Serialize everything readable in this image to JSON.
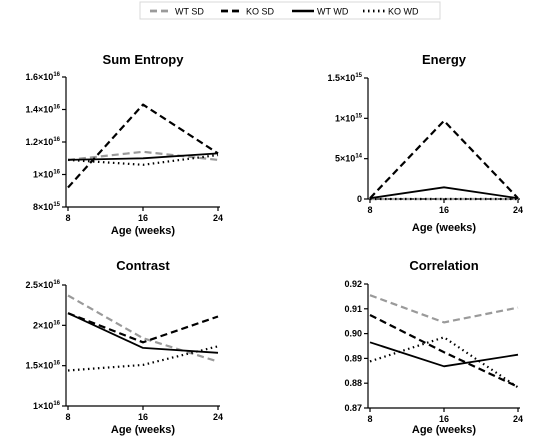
{
  "legend": [
    {
      "key": "wt_sd",
      "label": "WT SD"
    },
    {
      "key": "ko_sd",
      "label": "KO SD"
    },
    {
      "key": "wt_wd",
      "label": "WT WD"
    },
    {
      "key": "ko_wd",
      "label": "KO WD"
    }
  ],
  "series_styles": {
    "wt_sd": {
      "color": "#9a9a9a",
      "dash": "7,4",
      "width": 2.2
    },
    "ko_sd": {
      "color": "#000000",
      "dash": "7,4",
      "width": 2.2
    },
    "wt_wd": {
      "color": "#000000",
      "dash": "",
      "width": 1.8
    },
    "ko_wd": {
      "color": "#000000",
      "dash": "1.5,3.5",
      "width": 2.2
    }
  },
  "chart_data": [
    {
      "type": "line",
      "title": "Sum Entropy",
      "xlabel": "Age (weeks)",
      "ylabel": "",
      "categories": [
        "8",
        "16",
        "24"
      ],
      "ylim": [
        8000000000000000.0,
        1.6e+16
      ],
      "yticks": [
        {
          "v": 8000000000000000.0,
          "label": "8×10",
          "exp": "15"
        },
        {
          "v": 1e+16,
          "label": "1×10",
          "exp": "16"
        },
        {
          "v": 1.2e+16,
          "label": "1.2×10",
          "exp": "16"
        },
        {
          "v": 1.4e+16,
          "label": "1.4×10",
          "exp": "16"
        },
        {
          "v": 1.6e+16,
          "label": "1.6×10",
          "exp": "16"
        }
      ],
      "series": [
        {
          "key": "wt_sd",
          "name": "WT SD",
          "values": [
            1.09e+16,
            1.14e+16,
            1.09e+16
          ]
        },
        {
          "key": "ko_sd",
          "name": "KO SD",
          "values": [
            9200000000000000.0,
            1.43e+16,
            1.13e+16
          ]
        },
        {
          "key": "wt_wd",
          "name": "WT WD",
          "values": [
            1.09e+16,
            1.1e+16,
            1.13e+16
          ]
        },
        {
          "key": "ko_wd",
          "name": "KO WD",
          "values": [
            1.09e+16,
            1.06e+16,
            1.12e+16
          ]
        }
      ]
    },
    {
      "type": "line",
      "title": "Energy",
      "xlabel": "Age (weeks)",
      "ylabel": "",
      "categories": [
        "8",
        "16",
        "24"
      ],
      "ylim": [
        0,
        1500000000000000.0
      ],
      "yticks": [
        {
          "v": 0,
          "label": "0",
          "exp": ""
        },
        {
          "v": 500000000000000.0,
          "label": "5×10",
          "exp": "14"
        },
        {
          "v": 1000000000000000.0,
          "label": "1×10",
          "exp": "15"
        },
        {
          "v": 1500000000000000.0,
          "label": "1.5×10",
          "exp": "15"
        }
      ],
      "series": [
        {
          "key": "wt_sd",
          "name": "WT SD",
          "values": [
            0,
            0,
            0
          ]
        },
        {
          "key": "ko_sd",
          "name": "KO SD",
          "values": [
            10000000000000.0,
            970000000000000.0,
            10000000000000.0
          ]
        },
        {
          "key": "wt_wd",
          "name": "WT WD",
          "values": [
            10000000000000.0,
            145000000000000.0,
            10000000000000.0
          ]
        },
        {
          "key": "ko_wd",
          "name": "KO WD",
          "values": [
            0,
            0,
            0
          ]
        }
      ]
    },
    {
      "type": "line",
      "title": "Contrast",
      "xlabel": "Age (weeks)",
      "ylabel": "",
      "categories": [
        "8",
        "16",
        "24"
      ],
      "ylim": [
        1e+16,
        2.5e+16
      ],
      "yticks": [
        {
          "v": 1e+16,
          "label": "1×10",
          "exp": "16"
        },
        {
          "v": 1.5e+16,
          "label": "1.5×10",
          "exp": "16"
        },
        {
          "v": 2e+16,
          "label": "2×10",
          "exp": "16"
        },
        {
          "v": 2.5e+16,
          "label": "2.5×10",
          "exp": "16"
        }
      ],
      "series": [
        {
          "key": "wt_sd",
          "name": "WT SD",
          "values": [
            2.37e+16,
            1.84e+16,
            1.55e+16
          ]
        },
        {
          "key": "ko_sd",
          "name": "KO SD",
          "values": [
            2.15e+16,
            1.79e+16,
            2.11e+16
          ]
        },
        {
          "key": "wt_wd",
          "name": "WT WD",
          "values": [
            2.15e+16,
            1.72e+16,
            1.66e+16
          ]
        },
        {
          "key": "ko_wd",
          "name": "KO WD",
          "values": [
            1.44e+16,
            1.51e+16,
            1.74e+16
          ]
        }
      ]
    },
    {
      "type": "line",
      "title": "Correlation",
      "xlabel": "Age (weeks)",
      "ylabel": "",
      "categories": [
        "8",
        "16",
        "24"
      ],
      "ylim": [
        0.87,
        0.92
      ],
      "yticks": [
        {
          "v": 0.87,
          "label": "0.87",
          "exp": ""
        },
        {
          "v": 0.88,
          "label": "0.88",
          "exp": ""
        },
        {
          "v": 0.89,
          "label": "0.89",
          "exp": ""
        },
        {
          "v": 0.9,
          "label": "0.90",
          "exp": ""
        },
        {
          "v": 0.91,
          "label": "0.91",
          "exp": ""
        },
        {
          "v": 0.92,
          "label": "0.92",
          "exp": ""
        }
      ],
      "series": [
        {
          "key": "wt_sd",
          "name": "WT SD",
          "values": [
            0.9155,
            0.9045,
            0.9105
          ]
        },
        {
          "key": "ko_sd",
          "name": "KO SD",
          "values": [
            0.9075,
            0.8925,
            0.8785
          ]
        },
        {
          "key": "wt_wd",
          "name": "WT WD",
          "values": [
            0.8965,
            0.8868,
            0.8915
          ]
        },
        {
          "key": "ko_wd",
          "name": "KO WD",
          "values": [
            0.8888,
            0.8985,
            0.8783
          ]
        }
      ]
    }
  ]
}
